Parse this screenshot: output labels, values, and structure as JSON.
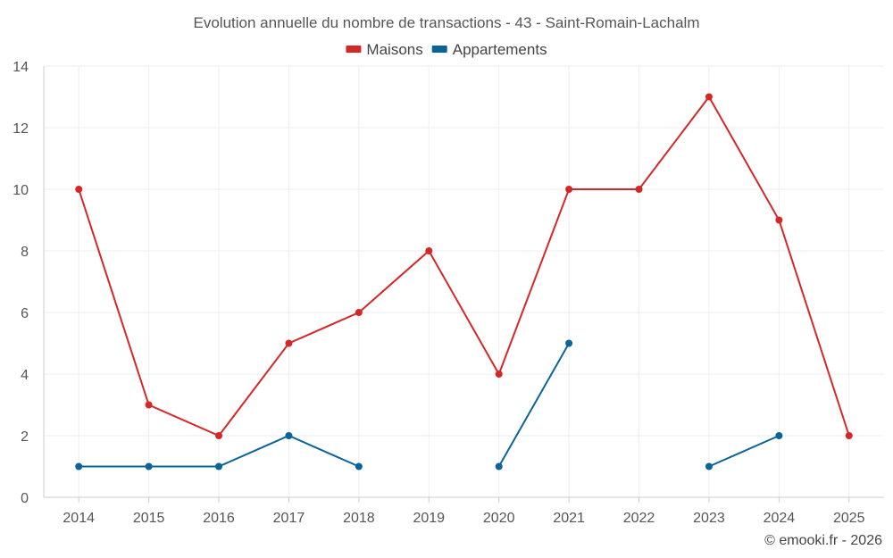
{
  "chart_data": {
    "type": "line",
    "title": "Evolution annuelle du nombre de transactions - 43 - Saint-Romain-Lachalm",
    "xlabel": "",
    "ylabel": "",
    "categories": [
      "2014",
      "2015",
      "2016",
      "2017",
      "2018",
      "2019",
      "2020",
      "2021",
      "2022",
      "2023",
      "2024",
      "2025"
    ],
    "ylim": [
      0,
      14
    ],
    "yticks": [
      0,
      2,
      4,
      6,
      8,
      10,
      12,
      14
    ],
    "grid": true,
    "legend_position": "top-center",
    "series": [
      {
        "name": "Maisons",
        "color": "#d62728",
        "values": [
          10,
          3,
          2,
          5,
          6,
          8,
          4,
          10,
          10,
          13,
          9,
          2
        ]
      },
      {
        "name": "Appartements",
        "color": "#0a6399",
        "values": [
          1,
          1,
          1,
          2,
          1,
          null,
          1,
          5,
          null,
          1,
          2,
          null
        ]
      }
    ]
  },
  "credit": "© emooki.fr - 2026"
}
